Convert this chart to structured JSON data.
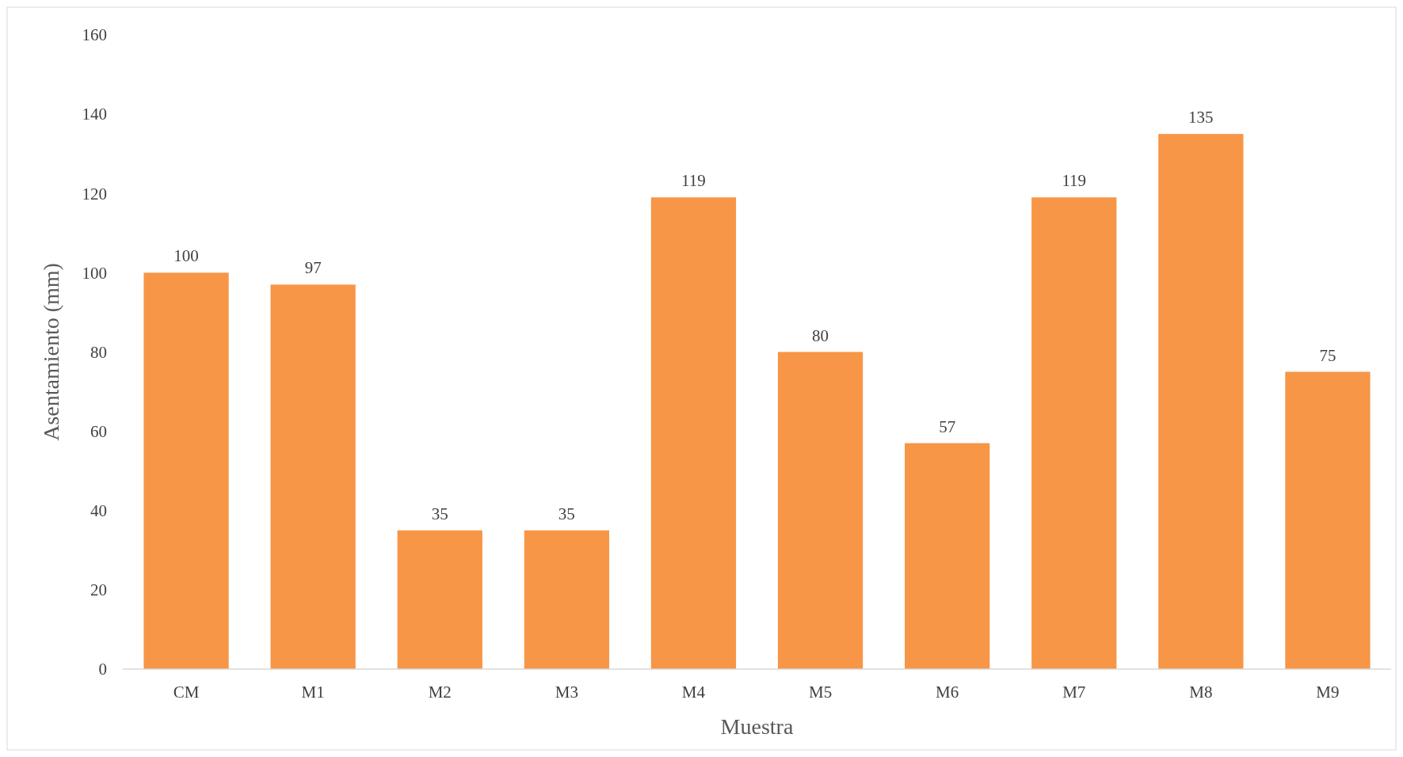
{
  "chart_data": {
    "type": "bar",
    "xlabel": "Muestra",
    "ylabel": "Asentamiento (mm)",
    "categories": [
      "CM",
      "M1",
      "M2",
      "M3",
      "M4",
      "M5",
      "M6",
      "M7",
      "M8",
      "M9"
    ],
    "values": [
      100,
      97,
      35,
      35,
      119,
      80,
      57,
      119,
      135,
      75
    ],
    "color": "#f79646",
    "ylim": [
      0,
      160
    ],
    "yticks": [
      0,
      20,
      40,
      60,
      80,
      100,
      120,
      140,
      160
    ],
    "grid": false,
    "data_labels": true
  }
}
